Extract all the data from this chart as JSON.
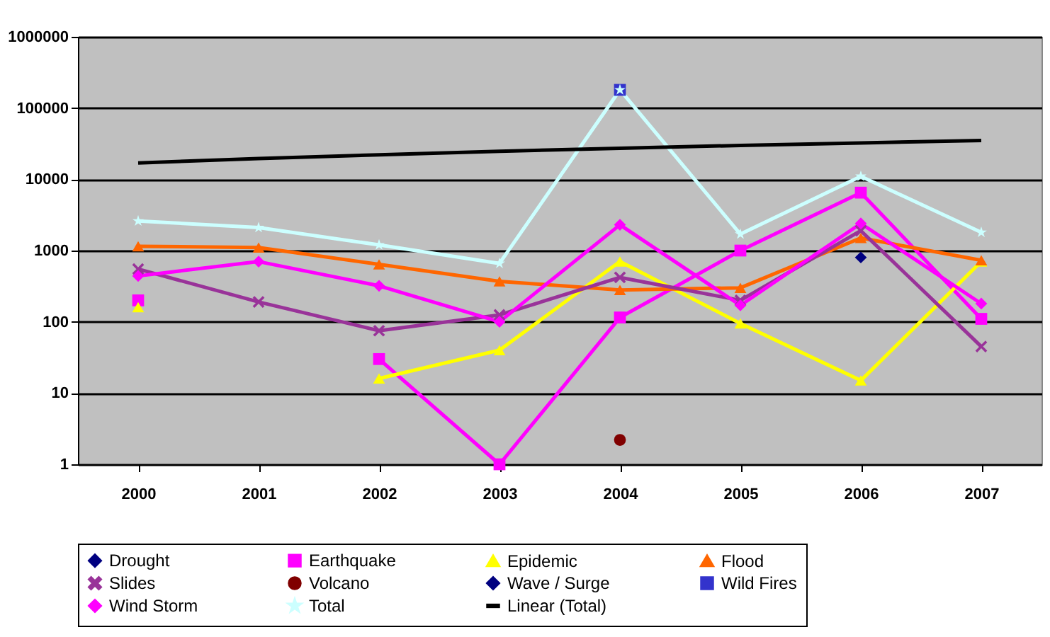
{
  "chart_data": {
    "type": "line",
    "categories": [
      "2000",
      "2001",
      "2002",
      "2003",
      "2004",
      "2005",
      "2006",
      "2007"
    ],
    "series": [
      {
        "name": "Drought",
        "color": "#000080",
        "marker": "diamond",
        "values": [
          null,
          null,
          null,
          null,
          null,
          null,
          800,
          null
        ]
      },
      {
        "name": "Earthquake",
        "color": "#ff00ff",
        "marker": "square",
        "values": [
          200,
          null,
          30,
          1,
          115,
          1000,
          6500,
          110
        ]
      },
      {
        "name": "Epidemic",
        "color": "#ffff00",
        "marker": "triangle",
        "values": [
          160,
          null,
          16,
          40,
          700,
          95,
          15,
          700
        ]
      },
      {
        "name": "Flood",
        "color": "#ff6600",
        "marker": "triangle",
        "values": [
          1150,
          1100,
          640,
          370,
          280,
          300,
          1500,
          730
        ]
      },
      {
        "name": "Slides",
        "color": "#993399",
        "marker": "cross",
        "values": [
          550,
          190,
          75,
          125,
          420,
          200,
          1900,
          45
        ]
      },
      {
        "name": "Volcano",
        "color": "#800000",
        "marker": "circle",
        "values": [
          null,
          null,
          null,
          null,
          2.2,
          null,
          null,
          null
        ]
      },
      {
        "name": "Wave / Surge",
        "color": "#000080",
        "marker": "diamond",
        "values": [
          null,
          null,
          null,
          null,
          null,
          null,
          null,
          null
        ]
      },
      {
        "name": "Wild Fires",
        "color": "#3333cc",
        "marker": "square",
        "values": [
          null,
          null,
          null,
          null,
          180000,
          null,
          null,
          null
        ]
      },
      {
        "name": "Wind Storm",
        "color": "#ff00ff",
        "marker": "diamond",
        "values": [
          440,
          700,
          320,
          100,
          2300,
          170,
          2400,
          180
        ]
      },
      {
        "name": "Total",
        "color": "#ccffff",
        "marker": "star",
        "values": [
          2600,
          2100,
          1200,
          660,
          180000,
          1700,
          11000,
          1800
        ]
      },
      {
        "name": "Linear (Total)",
        "color": "#000000",
        "marker": "none",
        "values": [
          17000,
          19600,
          22100,
          24700,
          27300,
          29900,
          32400,
          35000
        ]
      }
    ],
    "log": true,
    "ylim": [
      1,
      1000000
    ],
    "yticks": [
      1,
      10,
      100,
      1000,
      10000,
      100000,
      1000000
    ],
    "grid": "y",
    "legend": "bottom"
  }
}
